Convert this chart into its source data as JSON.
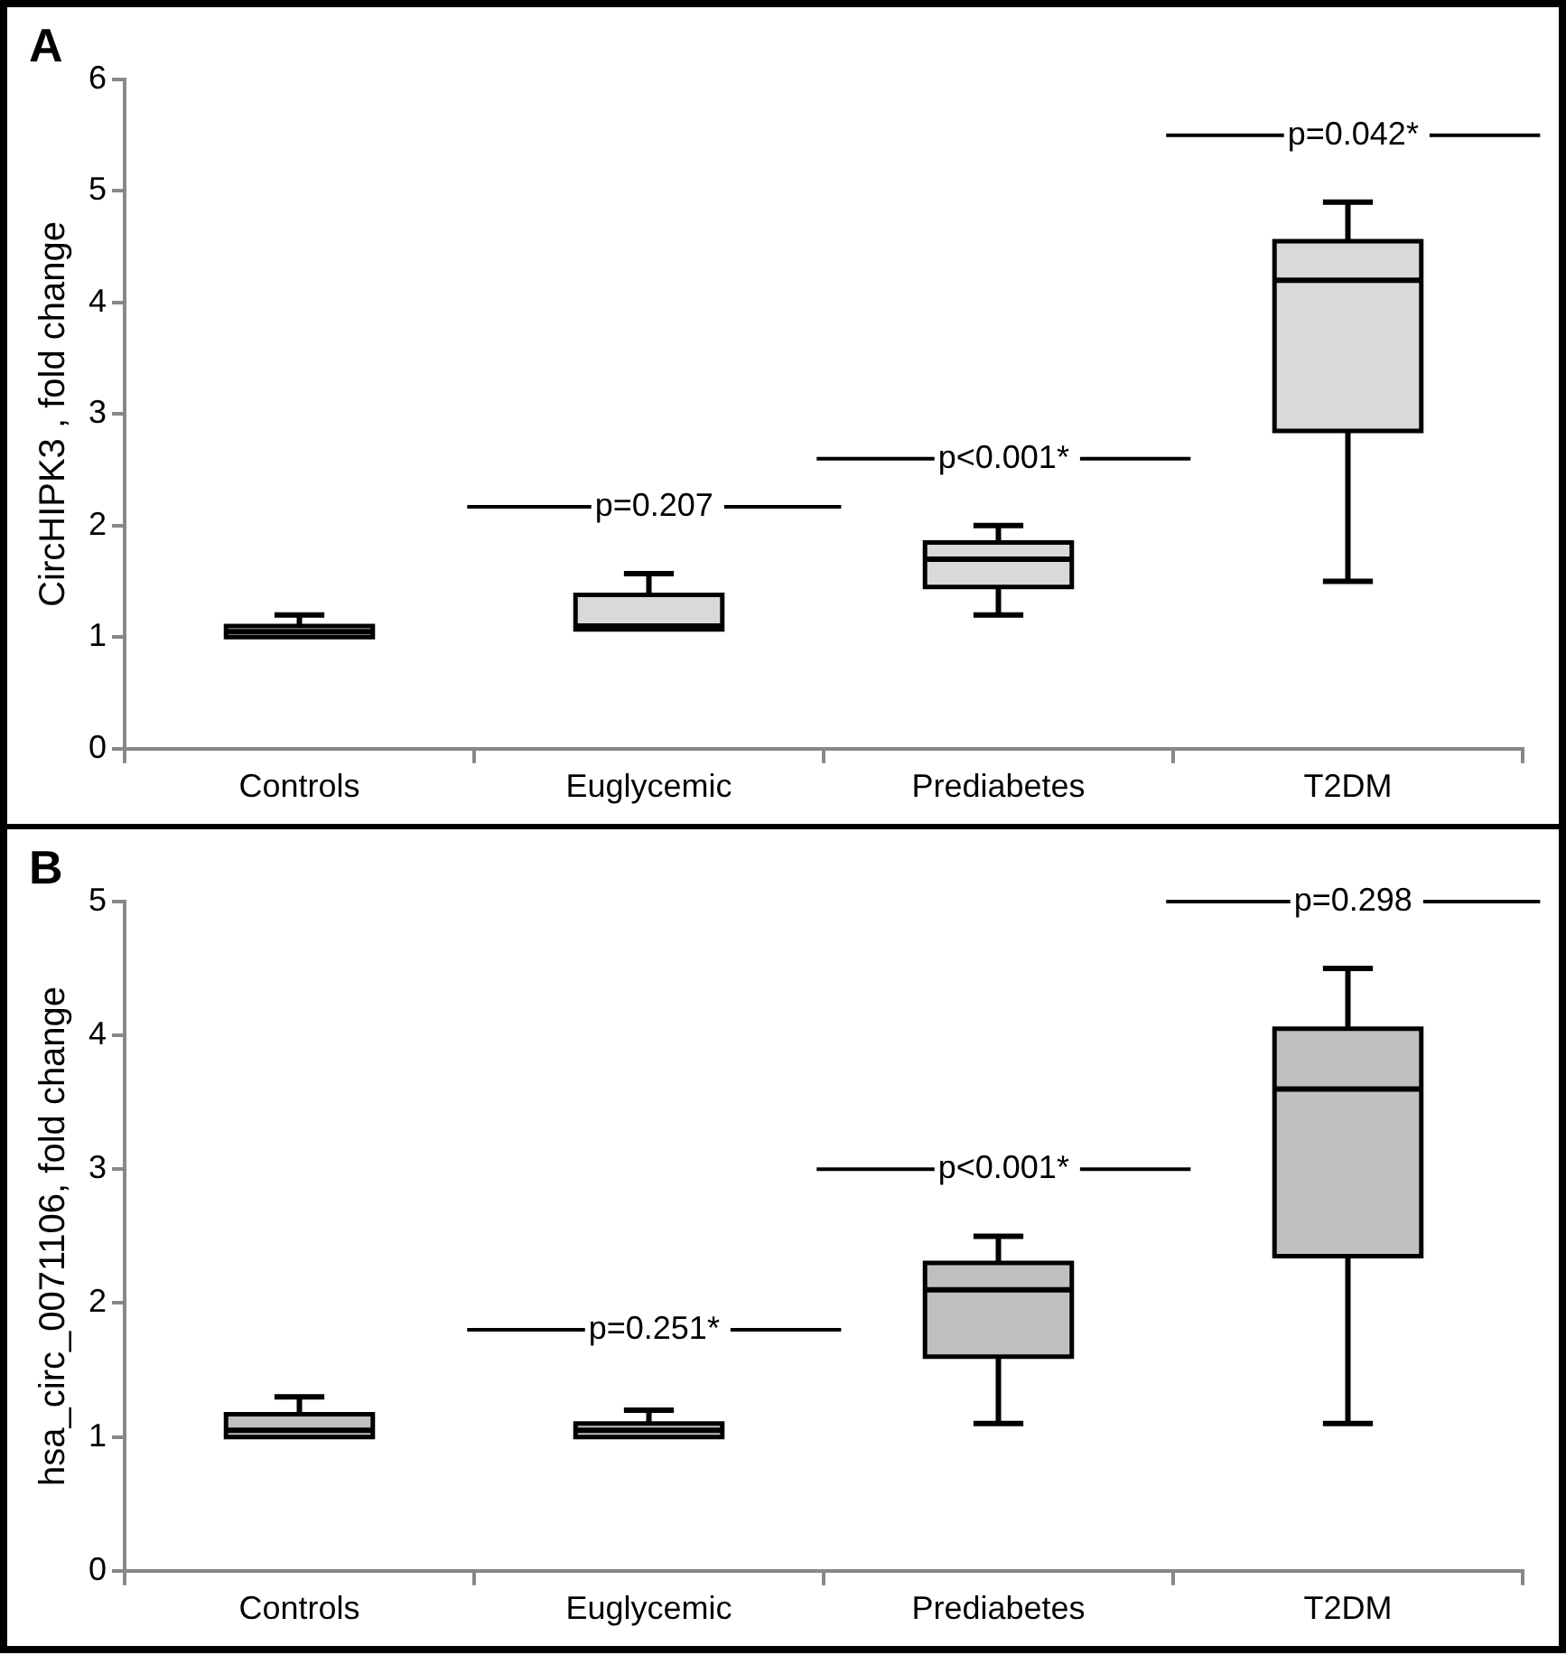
{
  "chart_data": [
    {
      "type": "box",
      "title": "A",
      "ylabel": "CircHIPK3 , fold change",
      "categories": [
        "Controls",
        "Euglycemic",
        "Prediabetes",
        "T2DM"
      ],
      "series": [
        {
          "color": "#d9d9d9",
          "boxes": [
            {
              "low": 1.0,
              "q1": 1.0,
              "median": 1.05,
              "q3": 1.1,
              "high": 1.2
            },
            {
              "low": 1.07,
              "q1": 1.07,
              "median": 1.1,
              "q3": 1.38,
              "high": 1.57
            },
            {
              "low": 1.2,
              "q1": 1.45,
              "median": 1.7,
              "q3": 1.85,
              "high": 2.0
            },
            {
              "low": 1.5,
              "q1": 2.85,
              "median": 4.2,
              "q3": 4.55,
              "high": 4.9
            }
          ]
        }
      ],
      "ylim": [
        0,
        6
      ],
      "yticks": [
        0,
        1,
        2,
        3,
        4,
        5,
        6
      ],
      "annotations": [
        "p=0.207",
        "p<0.001*",
        "p=0.042*"
      ]
    },
    {
      "type": "box",
      "title": "B",
      "ylabel": "hsa_circ_0071106, fold change",
      "categories": [
        "Controls",
        "Euglycemic",
        "Prediabetes",
        "T2DM"
      ],
      "series": [
        {
          "color": "#c0c0c0",
          "boxes": [
            {
              "low": 1.0,
              "q1": 1.0,
              "median": 1.05,
              "q3": 1.17,
              "high": 1.3
            },
            {
              "low": 1.0,
              "q1": 1.0,
              "median": 1.05,
              "q3": 1.1,
              "high": 1.2
            },
            {
              "low": 1.1,
              "q1": 1.6,
              "median": 2.1,
              "q3": 2.3,
              "high": 2.5
            },
            {
              "low": 1.1,
              "q1": 2.35,
              "median": 3.6,
              "q3": 4.05,
              "high": 4.5
            }
          ]
        }
      ],
      "ylim": [
        0,
        5
      ],
      "yticks": [
        0,
        1,
        2,
        3,
        4,
        5
      ],
      "annotations": [
        "p=0.251*",
        "p<0.001*",
        "p=0.298"
      ]
    }
  ]
}
